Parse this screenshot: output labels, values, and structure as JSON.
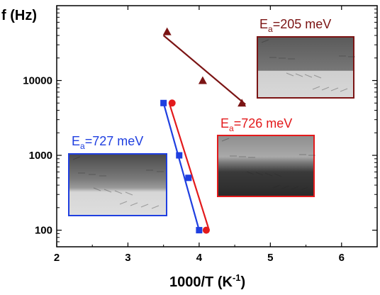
{
  "chart_data": {
    "type": "scatter",
    "xlabel": "1000/T (K",
    "xlabel_sup": "-1",
    "xlabel_close": ")",
    "ylabel": "f (Hz)",
    "xlim": [
      2,
      6.5
    ],
    "ylim": [
      60,
      100000
    ],
    "yscale": "log",
    "x_ticks": [
      2,
      3,
      4,
      5,
      6
    ],
    "x_tick_labels": [
      "2",
      "3",
      "4",
      "5",
      "6"
    ],
    "y_ticks": [
      100,
      1000,
      10000
    ],
    "y_tick_labels": [
      "100",
      "1000",
      "10000"
    ],
    "grid": false,
    "series": [
      {
        "color": "#7b1414",
        "marker": "triangle",
        "points": [
          [
            3.55,
            45000
          ],
          [
            4.05,
            10000
          ],
          [
            4.6,
            5000
          ]
        ],
        "fit": [
          [
            3.5,
            40000
          ],
          [
            4.65,
            4800
          ]
        ],
        "annotation": {
          "base": "E",
          "sub": "a",
          "rest": "=205  meV"
        }
      },
      {
        "color": "#e31a1c",
        "marker": "circle",
        "points": [
          [
            3.62,
            5000
          ],
          [
            4.1,
            100
          ]
        ],
        "fit": [
          [
            3.58,
            5000
          ],
          [
            4.14,
            100
          ]
        ],
        "annotation": {
          "base": "E",
          "sub": "a",
          "rest": "=726  meV"
        }
      },
      {
        "color": "#1f3fe0",
        "marker": "square",
        "points": [
          [
            3.5,
            5000
          ],
          [
            3.72,
            1000
          ],
          [
            3.85,
            500
          ],
          [
            4.0,
            100
          ]
        ],
        "fit": [
          [
            3.5,
            5000
          ],
          [
            4.0,
            100
          ]
        ],
        "annotation": {
          "base": "E",
          "sub": "a",
          "rest": "=727  meV"
        }
      }
    ]
  },
  "insets": {
    "dark_red_border": "#7b1414",
    "red_border": "#e31a1c",
    "blue_border": "#1f3fe0"
  }
}
